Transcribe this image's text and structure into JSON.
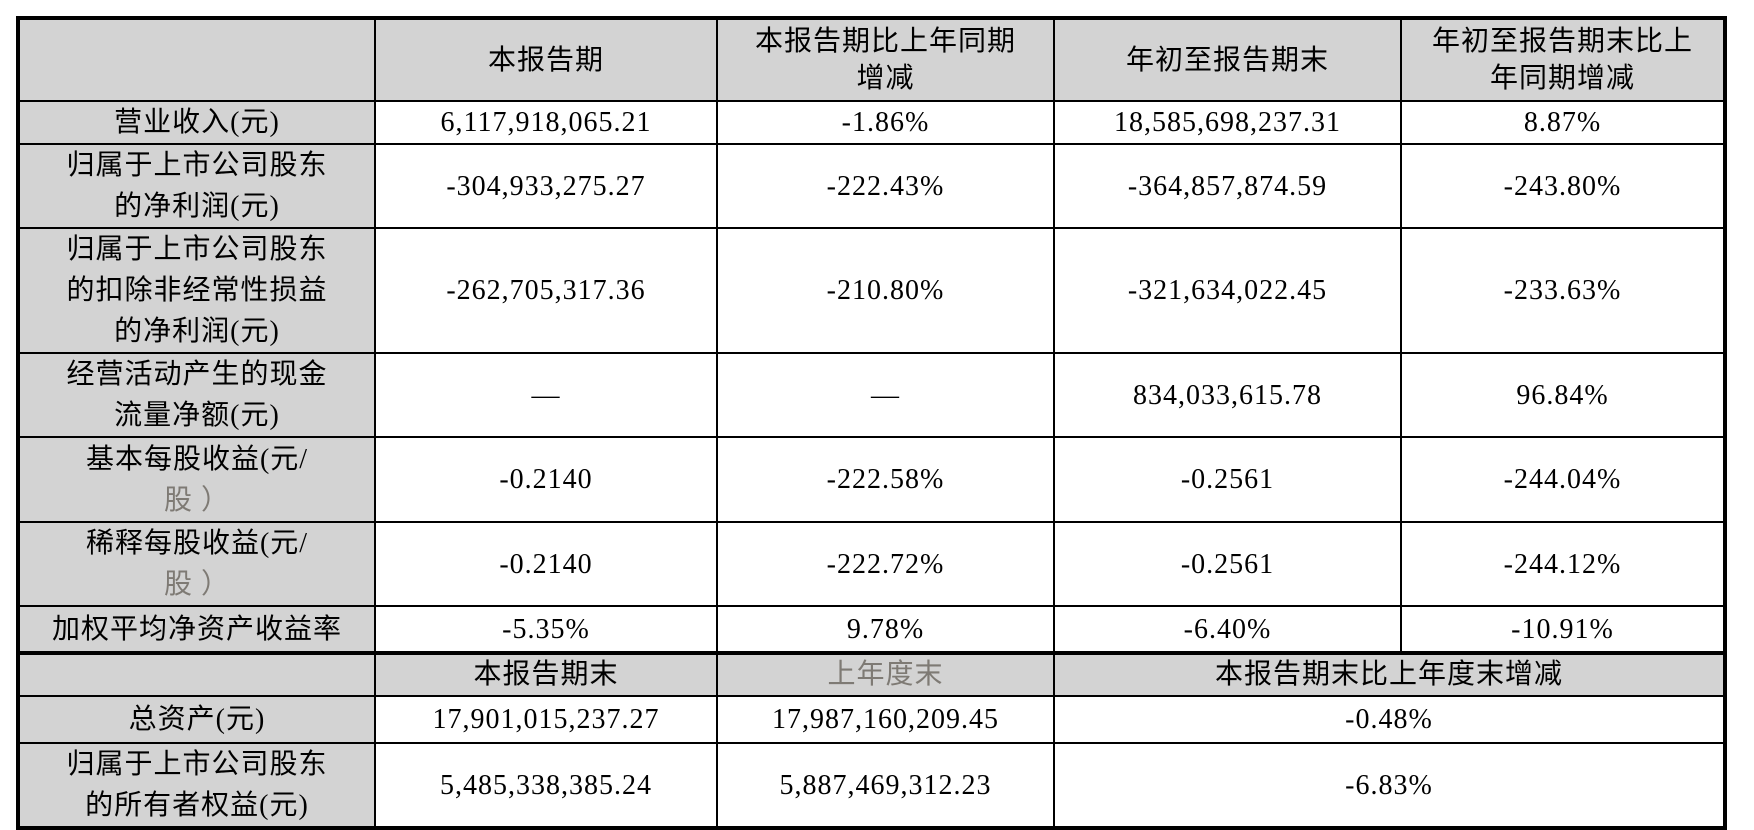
{
  "table": {
    "section1": {
      "headers": [
        "",
        "本报告期",
        "本报告期比上年同期\n增减",
        "年初至报告期末",
        "年初至报告期末比上\n年同期增减"
      ],
      "rows": [
        {
          "label_lines": [
            "营业收入(元)"
          ],
          "cells": [
            "6,117,918,065.21",
            "-1.86%",
            "18,585,698,237.31",
            "8.87%"
          ]
        },
        {
          "label_lines": [
            "归属于上市公司股东",
            "的净利润(元)"
          ],
          "cells": [
            "-304,933,275.27",
            "-222.43%",
            "-364,857,874.59",
            "-243.80%"
          ]
        },
        {
          "label_lines": [
            "归属于上市公司股东",
            "的扣除非经常性损益",
            "的净利润(元)"
          ],
          "cells": [
            "-262,705,317.36",
            "-210.80%",
            "-321,634,022.45",
            "-233.63%"
          ]
        },
        {
          "label_lines": [
            "经营活动产生的现金",
            "流量净额(元)"
          ],
          "cells": [
            "—",
            "—",
            "834,033,615.78",
            "96.84%"
          ],
          "gray_cells": [
            0,
            1
          ]
        },
        {
          "label_lines": [
            "基本每股收益(元/"
          ],
          "label_muted": "股 ）",
          "cells": [
            "-0.2140",
            "-222.58%",
            "-0.2561",
            "-244.04%"
          ]
        },
        {
          "label_lines": [
            "稀释每股收益(元/"
          ],
          "label_muted": "股 ）",
          "cells": [
            "-0.2140",
            "-222.72%",
            "-0.2561",
            "-244.12%"
          ]
        },
        {
          "label_lines": [
            "加权平均净资产收益率"
          ],
          "cells": [
            "-5.35%",
            "9.78%",
            "-6.40%",
            "-10.91%"
          ]
        }
      ]
    },
    "section2": {
      "headers": [
        "",
        "本报告期末",
        "上年度末",
        "本报告期末比上年度末增减"
      ],
      "rows": [
        {
          "label_lines": [
            "总资产(元)"
          ],
          "cells": [
            "17,901,015,237.27",
            "17,987,160,209.45",
            "-0.48%"
          ]
        },
        {
          "label_lines": [
            "归属于上市公司股东",
            "的所有者权益(元)"
          ],
          "cells": [
            "5,485,338,385.24",
            "5,887,469,312.23",
            "-6.83%"
          ]
        }
      ]
    },
    "colors": {
      "cell_shade": "#d3d3d3",
      "muted_text": "#7e7a74",
      "border": "#000000"
    }
  }
}
